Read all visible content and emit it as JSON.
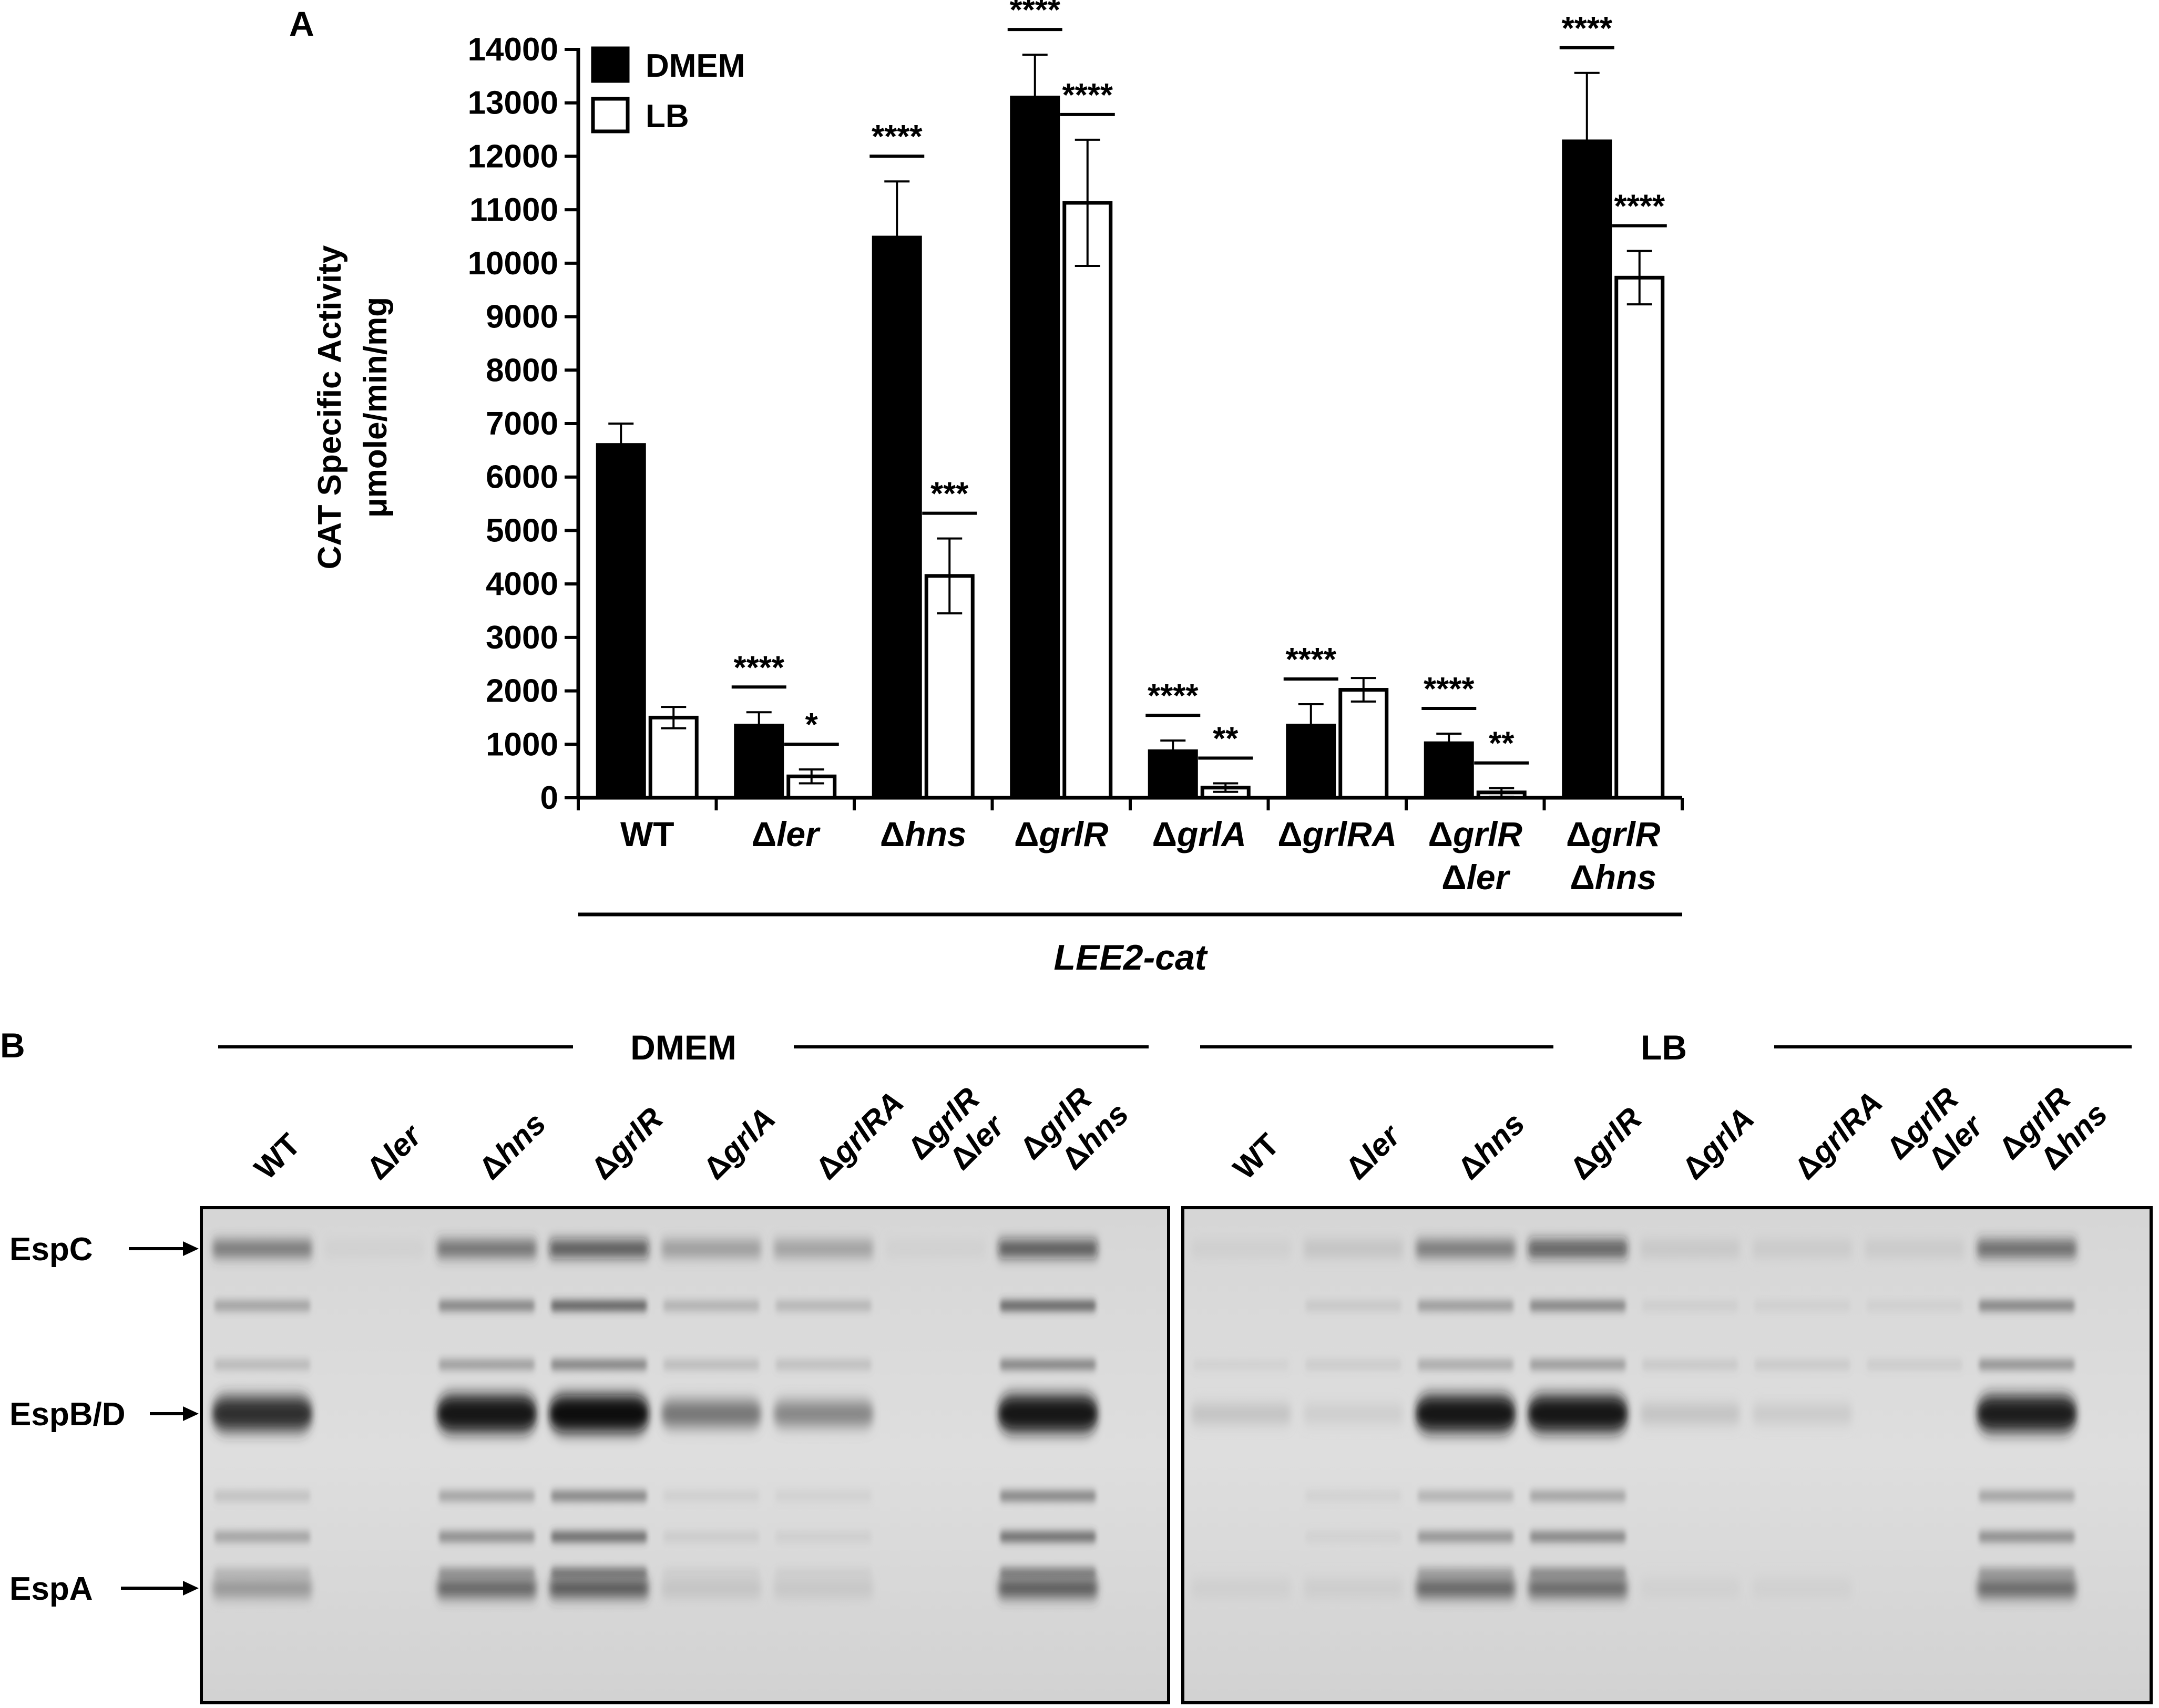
{
  "panel_a": {
    "label": "A",
    "group_label": "LEE2-cat"
  },
  "panel_b": {
    "label": "B",
    "groups": [
      {
        "name": "DMEM",
        "lanes": [
          {
            "l1": "WT",
            "l2": "",
            "delta": false,
            "italic": false
          },
          {
            "l1": "ler",
            "l2": "",
            "delta": true,
            "italic": true
          },
          {
            "l1": "hns",
            "l2": "",
            "delta": true,
            "italic": true
          },
          {
            "l1": "grlR",
            "l2": "",
            "delta": true,
            "italic": true
          },
          {
            "l1": "grlA",
            "l2": "",
            "delta": true,
            "italic": true
          },
          {
            "l1": "grlRA",
            "l2": "",
            "delta": true,
            "italic": true
          },
          {
            "l1": "grlR",
            "l2": "ler",
            "delta": true,
            "italic": true
          },
          {
            "l1": "grlR",
            "l2": "hns",
            "delta": true,
            "italic": true
          }
        ]
      },
      {
        "name": "LB",
        "lanes": [
          {
            "l1": "WT",
            "l2": "",
            "delta": false,
            "italic": false
          },
          {
            "l1": "ler",
            "l2": "",
            "delta": true,
            "italic": true
          },
          {
            "l1": "hns",
            "l2": "",
            "delta": true,
            "italic": true
          },
          {
            "l1": "grlR",
            "l2": "",
            "delta": true,
            "italic": true
          },
          {
            "l1": "grlA",
            "l2": "",
            "delta": true,
            "italic": true
          },
          {
            "l1": "grlRA",
            "l2": "",
            "delta": true,
            "italic": true
          },
          {
            "l1": "grlR",
            "l2": "ler",
            "delta": true,
            "italic": true
          },
          {
            "l1": "grlR",
            "l2": "hns",
            "delta": true,
            "italic": true
          }
        ]
      }
    ],
    "bands": [
      {
        "name": "EspC",
        "intensity": [
          0.72,
          0.05,
          0.78,
          0.95,
          0.45,
          0.42,
          0.05,
          0.95,
          0.06,
          0.15,
          0.72,
          0.92,
          0.12,
          0.1,
          0.1,
          0.85
        ]
      },
      {
        "name": "EspB/D",
        "intensity": [
          0.85,
          0.03,
          0.98,
          0.99,
          0.5,
          0.42,
          0.03,
          0.97,
          0.12,
          0.06,
          0.95,
          0.95,
          0.12,
          0.08,
          0.03,
          0.93
        ]
      },
      {
        "name": "EspA",
        "intensity": [
          0.4,
          0.03,
          0.72,
          0.8,
          0.12,
          0.1,
          0.03,
          0.78,
          0.05,
          0.06,
          0.72,
          0.7,
          0.04,
          0.04,
          0.03,
          0.7
        ]
      }
    ],
    "minor_bands": [
      {
        "rel": 0.17,
        "intensity": [
          0.35,
          0.02,
          0.55,
          0.78,
          0.25,
          0.22,
          0.02,
          0.75,
          0.03,
          0.1,
          0.4,
          0.55,
          0.06,
          0.05,
          0.05,
          0.55
        ]
      },
      {
        "rel": 0.3,
        "intensity": [
          0.2,
          0.02,
          0.38,
          0.55,
          0.18,
          0.16,
          0.02,
          0.55,
          0.04,
          0.08,
          0.3,
          0.4,
          0.1,
          0.09,
          0.08,
          0.45
        ]
      },
      {
        "rel": 0.59,
        "intensity": [
          0.15,
          0.02,
          0.35,
          0.55,
          0.06,
          0.05,
          0.02,
          0.55,
          0.03,
          0.04,
          0.25,
          0.35,
          0.03,
          0.03,
          0.02,
          0.35
        ]
      },
      {
        "rel": 0.68,
        "intensity": [
          0.35,
          0.02,
          0.5,
          0.72,
          0.08,
          0.06,
          0.02,
          0.7,
          0.03,
          0.04,
          0.45,
          0.55,
          0.03,
          0.03,
          0.02,
          0.5
        ]
      },
      {
        "rel": 0.76,
        "intensity": [
          0.18,
          0.02,
          0.4,
          0.6,
          0.05,
          0.05,
          0.02,
          0.55,
          0.02,
          0.03,
          0.3,
          0.45,
          0.02,
          0.02,
          0.02,
          0.35
        ]
      }
    ]
  },
  "chart_data": {
    "type": "bar",
    "ylabel": [
      "CAT Specific Activity",
      "μmole/min/mg"
    ],
    "xlabel": "",
    "ylim": [
      0,
      14000
    ],
    "yticks": [
      0,
      1000,
      2000,
      3000,
      4000,
      5000,
      6000,
      7000,
      8000,
      9000,
      10000,
      11000,
      12000,
      13000,
      14000
    ],
    "legend_position": "top-left",
    "categories": [
      {
        "line1": "WT",
        "line2": "",
        "delta": false,
        "italic": false
      },
      {
        "line1": "ler",
        "line2": "",
        "delta": true,
        "italic": true
      },
      {
        "line1": "hns",
        "line2": "",
        "delta": true,
        "italic": true
      },
      {
        "line1": "grlR",
        "line2": "",
        "delta": true,
        "italic": true
      },
      {
        "line1": "grlA",
        "line2": "",
        "delta": true,
        "italic": true
      },
      {
        "line1": "grlRA",
        "line2": "",
        "delta": true,
        "italic": true
      },
      {
        "line1": "grlR",
        "line2": "ler",
        "delta": true,
        "italic": true
      },
      {
        "line1": "grlR",
        "line2": "hns",
        "delta": true,
        "italic": true
      }
    ],
    "series": [
      {
        "name": "DMEM",
        "fill": "#000000",
        "values": [
          6600,
          1350,
          10480,
          13100,
          870,
          1350,
          1020,
          12280
        ],
        "errors": [
          400,
          250,
          1050,
          800,
          200,
          400,
          180,
          1280
        ],
        "significance": [
          "",
          "****",
          "****",
          "****",
          "****",
          "****",
          "****",
          "****"
        ]
      },
      {
        "name": "LB",
        "fill": "#ffffff",
        "values": [
          1500,
          400,
          4150,
          11130,
          190,
          2020,
          100,
          9730
        ],
        "errors": [
          200,
          130,
          700,
          1180,
          80,
          220,
          80,
          500
        ],
        "significance": [
          "",
          "*",
          "***",
          "****",
          "**",
          "",
          "**",
          "****"
        ]
      }
    ]
  }
}
